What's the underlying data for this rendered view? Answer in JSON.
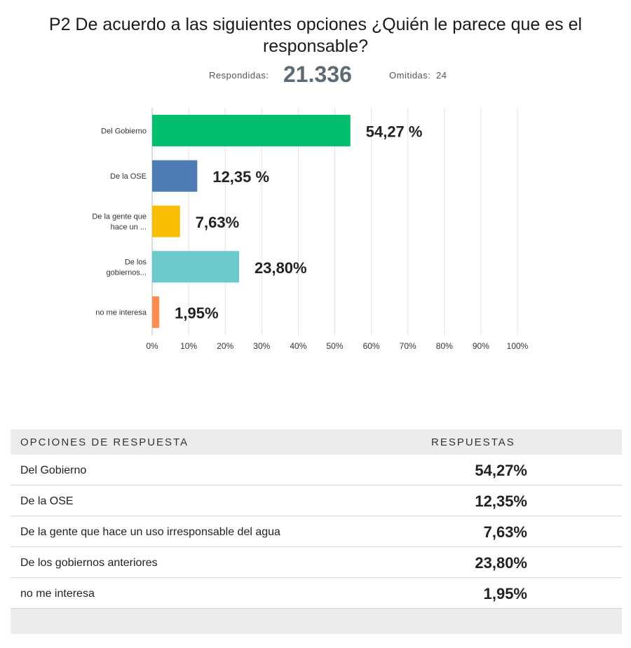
{
  "title": "P2 De acuerdo a las siguientes opciones ¿Quién le parece que es el responsable?",
  "stats": {
    "answered_label": "Respondidas:",
    "answered_value": "21.336",
    "skipped_label": "Omitidas:",
    "skipped_value": "24"
  },
  "chart_data": {
    "type": "bar",
    "orientation": "horizontal",
    "categories": [
      "Del Gobierno",
      "De la OSE",
      "De la gente que hace un ...",
      "De los gobiernos...",
      "no me interesa"
    ],
    "values": [
      54.27,
      12.35,
      7.63,
      23.8,
      1.95
    ],
    "value_labels": [
      "54,27 %",
      "12,35 %",
      "7,63%",
      "23,80%",
      "1,95%"
    ],
    "colors": [
      "#00bf6f",
      "#507cb6",
      "#f9be00",
      "#6bc8cd",
      "#ff8b4f"
    ],
    "xlim": [
      0,
      100
    ],
    "x_ticks": [
      "0%",
      "10%",
      "20%",
      "30%",
      "40%",
      "50%",
      "60%",
      "70%",
      "80%",
      "90%",
      "100%"
    ],
    "grid": true
  },
  "table": {
    "header_option": "OPCIONES DE RESPUESTA",
    "header_responses": "RESPUESTAS",
    "rows": [
      {
        "option": "Del Gobierno",
        "value": "54,27%"
      },
      {
        "option": "De la OSE",
        "value": "12,35%"
      },
      {
        "option": "De la gente que hace un uso irresponsable del agua",
        "value": "7,63%"
      },
      {
        "option": "De los gobiernos anteriores",
        "value": "23,80%"
      },
      {
        "option": "no me interesa",
        "value": "1,95%"
      }
    ]
  }
}
